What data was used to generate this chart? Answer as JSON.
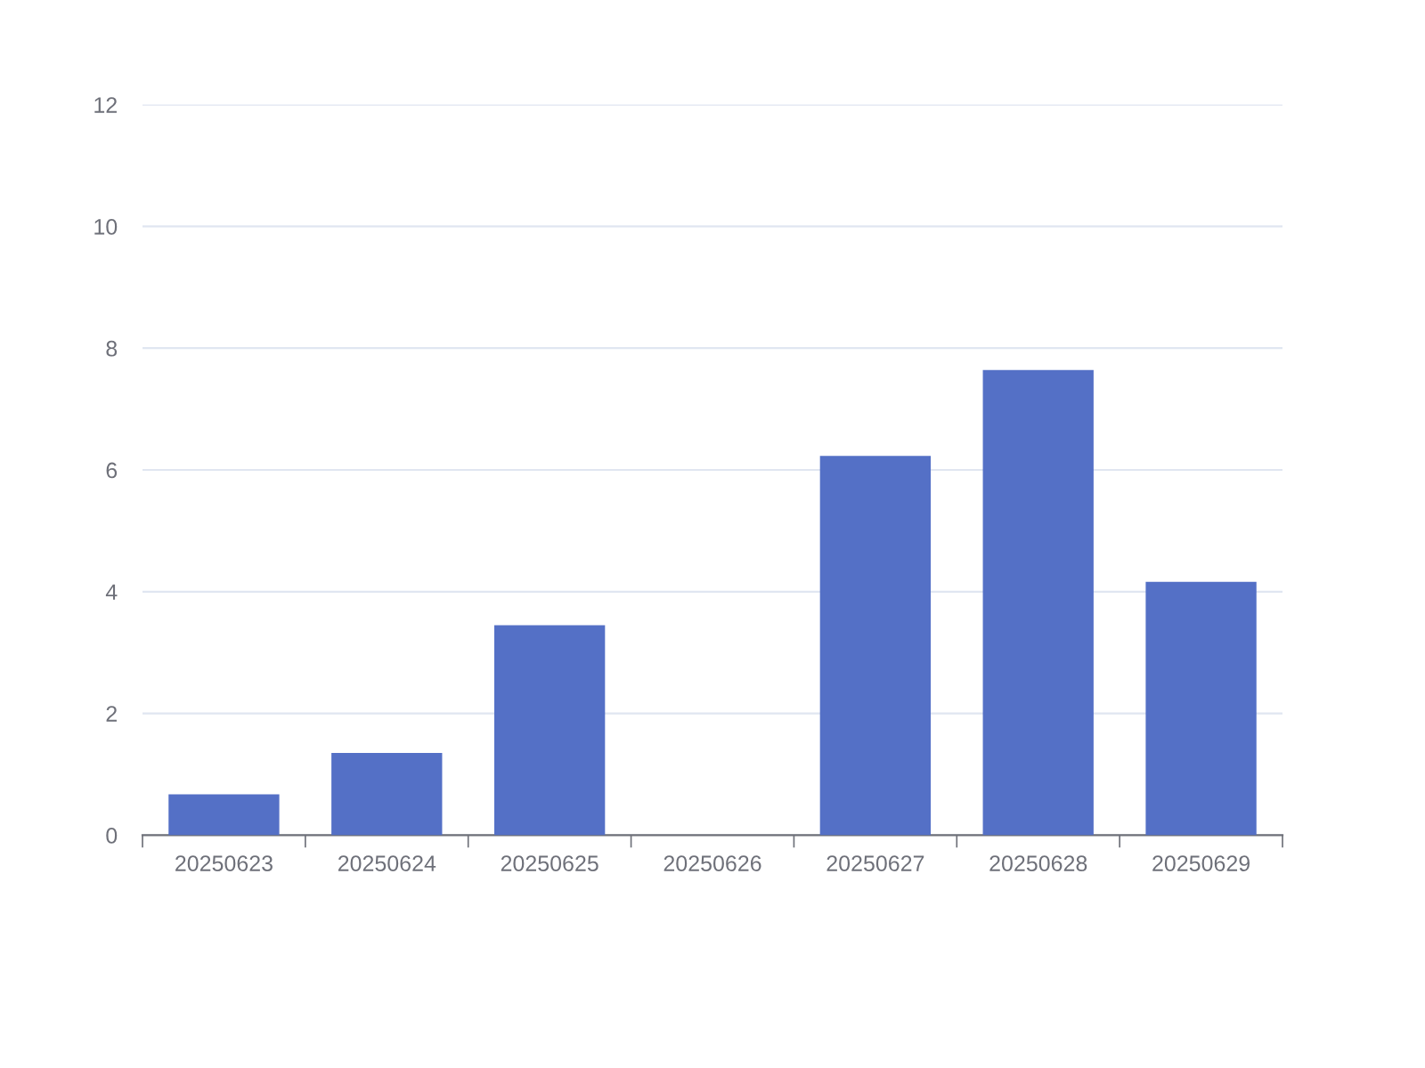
{
  "chart_data": {
    "type": "bar",
    "categories": [
      "20250623",
      "20250624",
      "20250625",
      "20250626",
      "20250627",
      "20250628",
      "20250629"
    ],
    "values": [
      0.67,
      1.35,
      3.45,
      0,
      6.23,
      7.64,
      4.16
    ],
    "color": "#5470c6",
    "ylim": [
      0,
      12
    ],
    "yticks": [
      0,
      2,
      4,
      6,
      8,
      10,
      12
    ],
    "grid": "y"
  }
}
